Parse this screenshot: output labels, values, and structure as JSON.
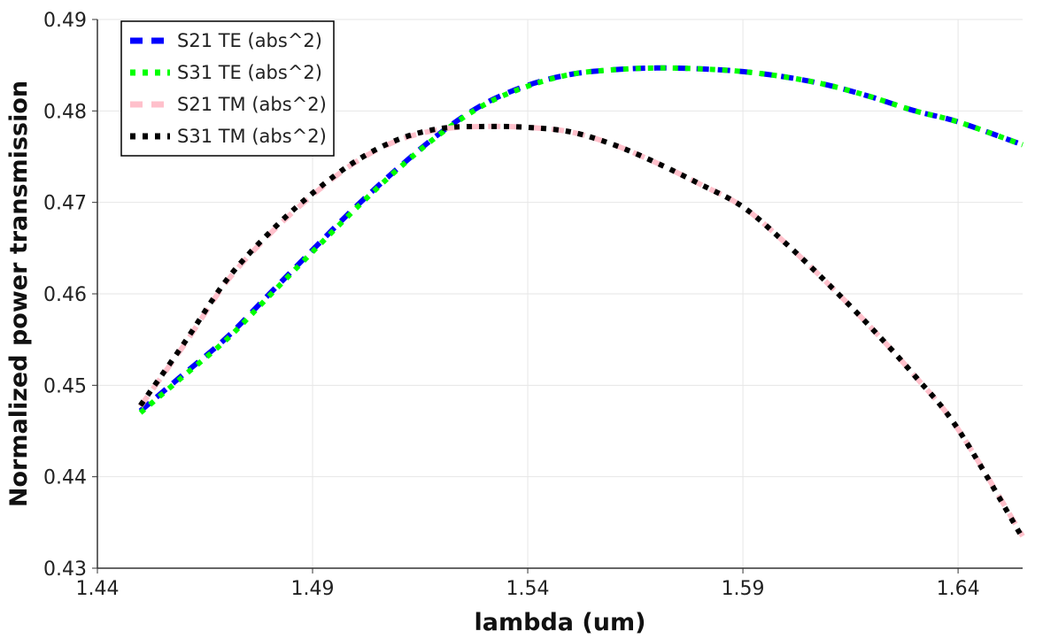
{
  "chart_data": {
    "type": "line",
    "title": "",
    "xlabel": "lambda (um)",
    "ylabel": "Normalized power transmission",
    "xlim": [
      1.44,
      1.655
    ],
    "ylim": [
      0.43,
      0.49
    ],
    "x_ticks": [
      "1.44",
      "1.49",
      "1.54",
      "1.59",
      "1.64"
    ],
    "y_ticks": [
      "0.43",
      "0.44",
      "0.45",
      "0.46",
      "0.47",
      "0.48",
      "0.49"
    ],
    "grid": true,
    "legend_position": "top-left",
    "x": [
      1.45,
      1.46,
      1.47,
      1.48,
      1.49,
      1.5,
      1.51,
      1.52,
      1.53,
      1.54,
      1.55,
      1.56,
      1.57,
      1.58,
      1.59,
      1.6,
      1.61,
      1.62,
      1.63,
      1.64,
      1.655
    ],
    "series": [
      {
        "name": "S21 TE (abs^2)",
        "color": "#0000ff",
        "dash": "dash",
        "values": [
          0.4472,
          0.4512,
          0.4552,
          0.46,
          0.4648,
          0.4695,
          0.4738,
          0.4777,
          0.4808,
          0.4828,
          0.484,
          0.4845,
          0.4847,
          0.4846,
          0.4843,
          0.4837,
          0.4828,
          0.4815,
          0.48,
          0.4788,
          0.4763
        ]
      },
      {
        "name": "S31 TE (abs^2)",
        "color": "#00ff00",
        "dash": "dot",
        "values": [
          0.447,
          0.451,
          0.455,
          0.4598,
          0.4646,
          0.4693,
          0.4737,
          0.4776,
          0.4807,
          0.4827,
          0.484,
          0.4845,
          0.4847,
          0.4846,
          0.4843,
          0.4837,
          0.4828,
          0.4815,
          0.48,
          0.4788,
          0.4763
        ]
      },
      {
        "name": "S21 TM (abs^2)",
        "color": "#ffc0cb",
        "dash": "dash",
        "values": [
          0.4477,
          0.4543,
          0.4613,
          0.4665,
          0.4708,
          0.4744,
          0.4768,
          0.478,
          0.4783,
          0.4782,
          0.4777,
          0.4763,
          0.4743,
          0.472,
          0.4695,
          0.4655,
          0.461,
          0.4562,
          0.451,
          0.4452,
          0.4335
        ]
      },
      {
        "name": "S31 TM (abs^2)",
        "color": "#000000",
        "dash": "dot",
        "values": [
          0.4478,
          0.4545,
          0.4615,
          0.4667,
          0.471,
          0.4745,
          0.4769,
          0.4781,
          0.4783,
          0.4782,
          0.4777,
          0.4763,
          0.4743,
          0.472,
          0.4695,
          0.4655,
          0.461,
          0.4562,
          0.451,
          0.4452,
          0.4333
        ]
      }
    ]
  }
}
